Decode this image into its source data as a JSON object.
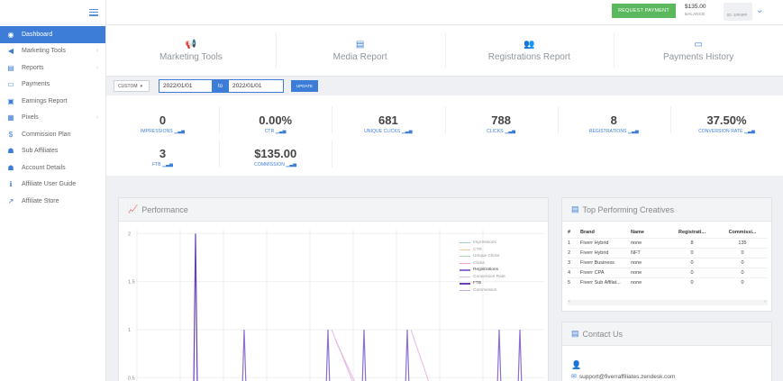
{
  "sidebar": {
    "items": [
      {
        "label": "Dashboard",
        "icon": "dashboard-icon",
        "glyph": "◉",
        "active": true,
        "caret": false
      },
      {
        "label": "Marketing Tools",
        "icon": "megaphone-icon",
        "glyph": "◀",
        "active": false,
        "caret": true
      },
      {
        "label": "Reports",
        "icon": "report-icon",
        "glyph": "▤",
        "active": false,
        "caret": true
      },
      {
        "label": "Payments",
        "icon": "credit-card-icon",
        "glyph": "▭",
        "active": false,
        "caret": false
      },
      {
        "label": "Earnings Report",
        "icon": "money-icon",
        "glyph": "▣",
        "active": false,
        "caret": false
      },
      {
        "label": "Pixels",
        "icon": "grid-icon",
        "glyph": "▦",
        "active": false,
        "caret": true
      },
      {
        "label": "Commission Plan",
        "icon": "dollar-icon",
        "glyph": "$",
        "active": false,
        "caret": false
      },
      {
        "label": "Sub Affiliates",
        "icon": "users-icon",
        "glyph": "☗",
        "active": false,
        "caret": false
      },
      {
        "label": "Account Details",
        "icon": "user-icon",
        "glyph": "☗",
        "active": false,
        "caret": false
      },
      {
        "label": "Affiliate User Guide",
        "icon": "info-icon",
        "glyph": "ℹ",
        "active": false,
        "caret": false
      },
      {
        "label": "Affiliate Store",
        "icon": "external-link-icon",
        "glyph": "↗",
        "active": false,
        "caret": false
      }
    ]
  },
  "topbar": {
    "request_payment": "REQUEST PAYMENT",
    "balance_amount": "$135.00",
    "balance_label": "BALANCE",
    "user_id": "ID: 1##4##"
  },
  "tabs": [
    {
      "label": "Marketing Tools",
      "icon": "megaphone-icon",
      "glyph": "📢"
    },
    {
      "label": "Media Report",
      "icon": "report-icon",
      "glyph": "▤"
    },
    {
      "label": "Registrations Report",
      "icon": "users-icon",
      "glyph": "👥"
    },
    {
      "label": "Payments History",
      "icon": "credit-card-icon",
      "glyph": "▭"
    }
  ],
  "filter": {
    "range_select": "CUSTOM",
    "date_from": "2022/01/01",
    "to_label": "to",
    "date_to": "2022/01/01",
    "update": "UPDATE"
  },
  "stats": [
    {
      "value": "0",
      "label": "IMPRESSIONS"
    },
    {
      "value": "0.00%",
      "label": "CTR"
    },
    {
      "value": "681",
      "label": "UNIQUE CLICKS"
    },
    {
      "value": "788",
      "label": "CLICKS"
    },
    {
      "value": "8",
      "label": "REGISTRATIONS"
    },
    {
      "value": "37.50%",
      "label": "CONVERSION RATE"
    },
    {
      "value": "3",
      "label": "FTB"
    },
    {
      "value": "$135.00",
      "label": "COMMISSION"
    }
  ],
  "performance": {
    "title": "Performance"
  },
  "chart_data": {
    "type": "line",
    "title": "Performance",
    "ylim": [
      0.4,
      2.05
    ],
    "yticks": [
      "2",
      "1.5",
      "1",
      "0.5"
    ],
    "legend_position": "top-right",
    "grid": true,
    "series": [
      {
        "name": "Impressions",
        "color": "#9ad0cf"
      },
      {
        "name": "CTR",
        "color": "#f4c89c"
      },
      {
        "name": "Unique Clicks",
        "color": "#a4dcb0"
      },
      {
        "name": "Clicks",
        "color": "#f3a7b8"
      },
      {
        "name": "Registrations",
        "color": "#8c6fd1"
      },
      {
        "name": "Conversion Rate",
        "color": "#e8b7e3"
      },
      {
        "name": "FTB",
        "color": "#6a3fb5"
      },
      {
        "name": "Commission",
        "color": "#c9a6e6"
      }
    ]
  },
  "top_creatives": {
    "title": "Top Performing Creatives",
    "columns": [
      "#",
      "Brand",
      "Name",
      "Registrati...",
      "Commissi..."
    ],
    "rows": [
      [
        "1",
        "Fiverr Hybrid",
        "none",
        "8",
        "135"
      ],
      [
        "2",
        "Fiverr Hybrid",
        "NFT",
        "0",
        "0"
      ],
      [
        "3",
        "Fiverr Business",
        "none",
        "0",
        "0"
      ],
      [
        "4",
        "Fiverr CPA",
        "none",
        "0",
        "0"
      ],
      [
        "5",
        "Fiverr Sub Affilat...",
        "none",
        "0",
        "0"
      ]
    ]
  },
  "contact": {
    "title": "Contact Us",
    "email": "support@fiverraffiliates.zendesk.com"
  },
  "colors": {
    "accent": "#3d7dd8",
    "success": "#5cb85c"
  }
}
